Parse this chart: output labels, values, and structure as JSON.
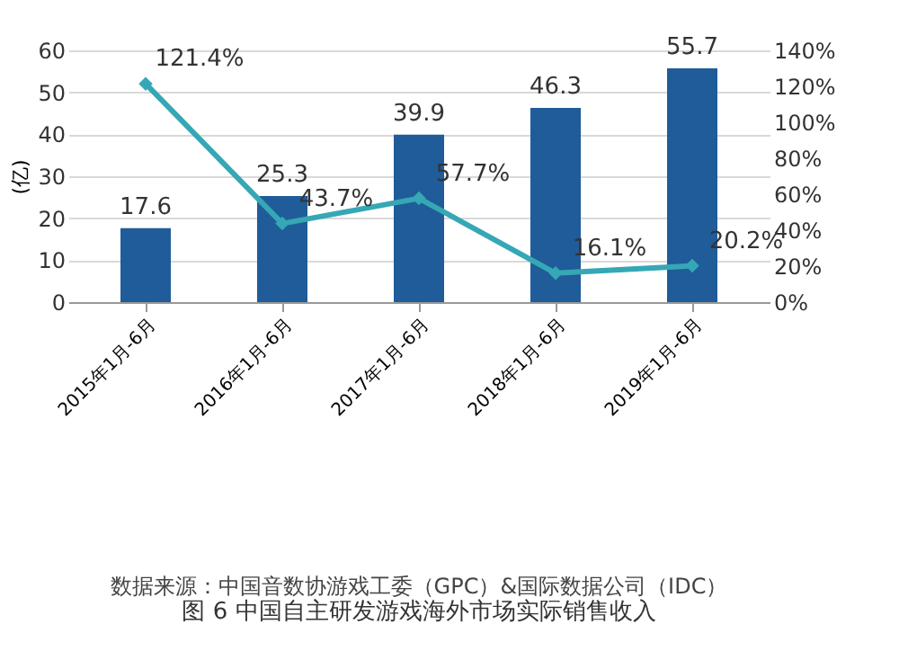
{
  "chart_data": {
    "type": "bar",
    "title": "图 6 中国自主研发游戏海外市场实际销售收入",
    "annotations": [
      "数据来源：中国音数协游戏工委（GPC）&国际数据公司（IDC）"
    ],
    "ylabel": "(亿)",
    "categories": [
      "2015年1月-6月",
      "2016年1月-6月",
      "2017年1月-6月",
      "2018年1月-6月",
      "2019年1月-6月"
    ],
    "series": [
      {
        "color": "#1f5c99",
        "values": [
          17.6,
          25.3,
          39.9,
          46.3,
          55.7
        ]
      },
      {
        "type": "line",
        "axis": "y2",
        "color": "#35a7b5",
        "values": [
          121.4,
          43.7,
          57.7,
          16.1,
          20.2
        ],
        "value_labels": [
          "121.4%",
          "43.7%",
          "57.7%",
          "16.1%",
          "20.2%"
        ]
      }
    ],
    "ylim": [
      0,
      60
    ],
    "yticks": [
      0,
      10,
      20,
      30,
      40,
      50,
      60
    ],
    "y2lim": [
      0,
      140
    ],
    "y2ticks": [
      {
        "value": 0,
        "label": "0%"
      },
      {
        "value": 20,
        "label": "20%"
      },
      {
        "value": 40,
        "label": "40%"
      },
      {
        "value": 60,
        "label": "60%"
      },
      {
        "value": 80,
        "label": "80%"
      },
      {
        "value": 100,
        "label": "100%"
      },
      {
        "value": 120,
        "label": "120%"
      },
      {
        "value": 140,
        "label": "140%"
      }
    ],
    "data_labels": true,
    "grid": "y",
    "marker": "diamond",
    "line_style": "solid"
  }
}
